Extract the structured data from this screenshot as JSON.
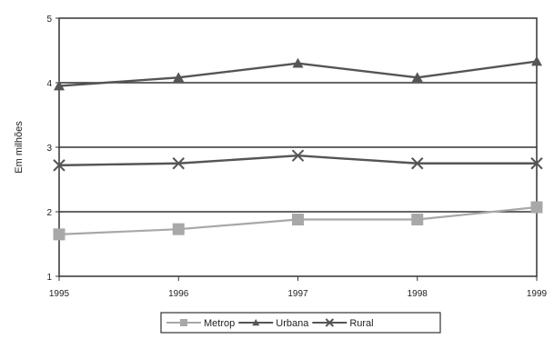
{
  "chart_data": {
    "type": "line",
    "title": "",
    "xlabel": "",
    "ylabel": "Em milhões",
    "x": [
      "1995",
      "1996",
      "1997",
      "1998",
      "1999"
    ],
    "y_ticks": [
      "1",
      "2",
      "3",
      "4",
      "5"
    ],
    "ylim": [
      1,
      5
    ],
    "grid": "horizontal lines at 2, 3 and 4",
    "legend_position": "bottom",
    "series": [
      {
        "name": "Metrop",
        "marker": "square",
        "color": "#a8a8a8",
        "values": [
          1.65,
          1.73,
          1.88,
          1.88,
          2.07
        ]
      },
      {
        "name": "Urbana",
        "marker": "triangle",
        "color": "#555555",
        "values": [
          3.95,
          4.08,
          4.3,
          4.08,
          4.33
        ]
      },
      {
        "name": "Rural",
        "marker": "x",
        "color": "#555555",
        "values": [
          2.72,
          2.75,
          2.87,
          2.75,
          2.75
        ]
      }
    ]
  }
}
